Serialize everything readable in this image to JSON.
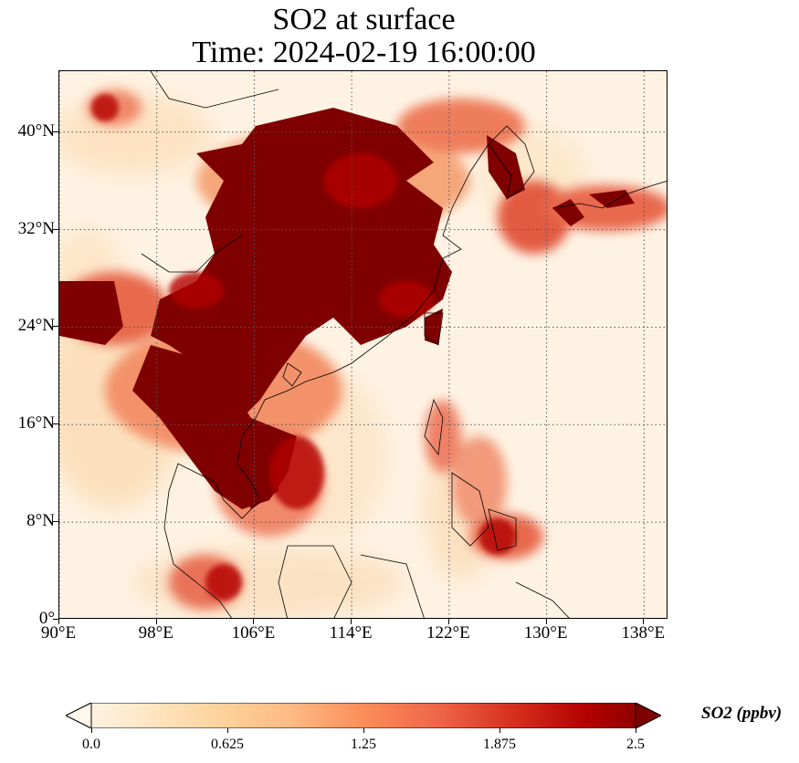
{
  "title": {
    "line1": "SO2 at surface",
    "line2": "Time: 2024-02-19 16:00:00"
  },
  "map": {
    "lon_range": [
      90,
      140
    ],
    "lat_range": [
      0,
      45
    ],
    "lat_labels": [
      "0°",
      "8°N",
      "16°N",
      "24°N",
      "32°N",
      "40°N"
    ],
    "lat_values": [
      0,
      8,
      16,
      24,
      32,
      40
    ],
    "lon_labels": [
      "90°E",
      "98°E",
      "106°E",
      "114°E",
      "122°E",
      "130°E",
      "138°E"
    ],
    "lon_values": [
      90,
      98,
      106,
      114,
      122,
      130,
      138
    ],
    "gridlines": true,
    "gridline_style": "dotted",
    "background_color": "#fef3e3"
  },
  "colorbar": {
    "label": "SO2 (ppbv)",
    "ticks": [
      "0.0",
      "0.625",
      "1.25",
      "1.875",
      "2.5"
    ],
    "tick_values": [
      0,
      0.625,
      1.25,
      1.875,
      2.5
    ],
    "range": [
      0,
      2.5
    ],
    "extend": "both",
    "colormap": "OrRd",
    "colors": [
      "#fff7ec",
      "#fee8c8",
      "#fdd49e",
      "#fdbb84",
      "#fc8d59",
      "#ef6548",
      "#d7301f",
      "#b30000",
      "#7f0000"
    ]
  }
}
